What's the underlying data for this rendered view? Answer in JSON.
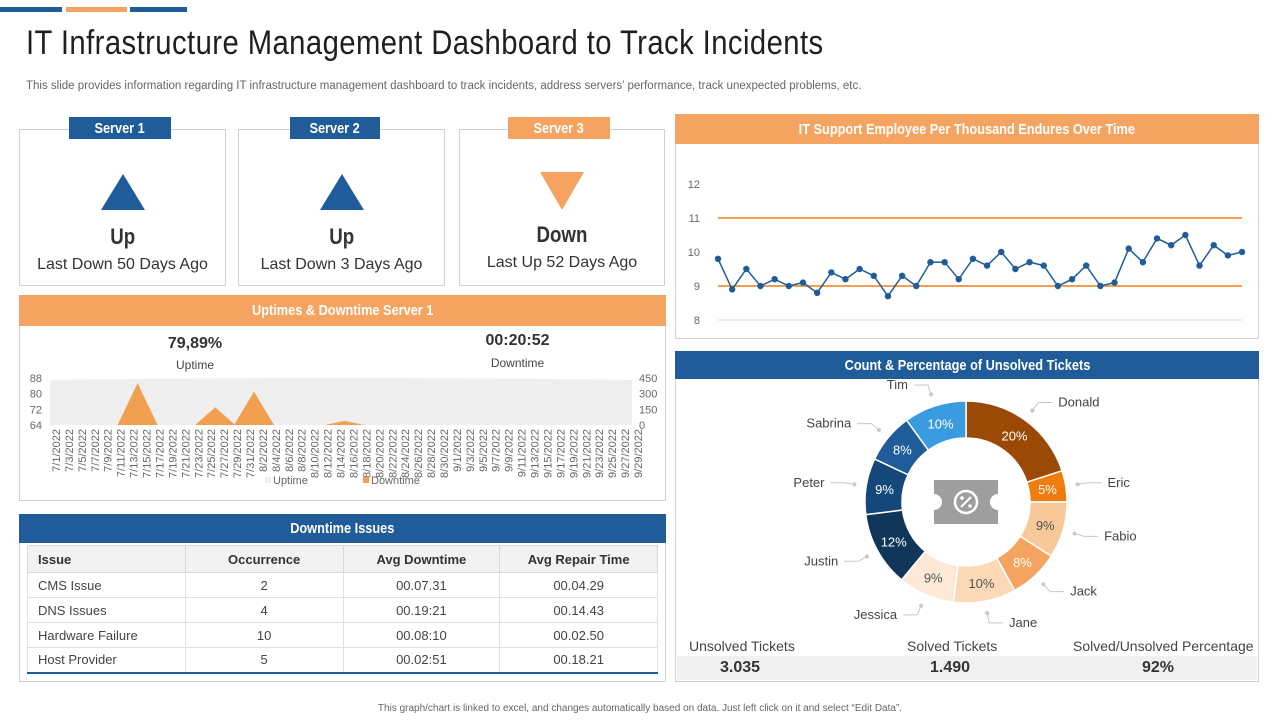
{
  "page": {
    "title": "IT Infrastructure Management Dashboard to Track Incidents",
    "subtitle": "This slide provides information regarding IT infrastructure management dashboard to track incidents, address servers’ performance, track unexpected problems, etc.",
    "footer": "This graph/chart is linked to excel, and changes automatically based on data. Just left click on it and select “Edit Data”."
  },
  "colors": {
    "blue": "#1f5c99",
    "orange": "#f4a460",
    "dark_navy": "#173a5e",
    "light_blue": "#3b8fd6"
  },
  "servers": [
    {
      "label": "Server 1",
      "status": "Up",
      "note": "Last Down 50 Days Ago",
      "direction": "up"
    },
    {
      "label": "Server 2",
      "status": "Up",
      "note": "Last Down 3 Days Ago",
      "direction": "up"
    },
    {
      "label": "Server 3",
      "status": "Down",
      "note": "Last Up 52 Days Ago",
      "direction": "down"
    }
  ],
  "uptime_panel": {
    "title": "Uptimes & Downtime Server 1",
    "uptime_value": "79,89%",
    "uptime_label": "Uptime",
    "downtime_value": "00:20:52",
    "downtime_label": "Downtime"
  },
  "issues_panel": {
    "title": "Downtime Issues",
    "headers": [
      "Issue",
      "Occurrence",
      "Avg Downtime",
      "Avg Repair Time"
    ],
    "rows": [
      [
        "CMS Issue",
        "2",
        "00.07.31",
        "00.04.29"
      ],
      [
        "DNS Issues",
        "4",
        "00.19:21",
        "00.14.43"
      ],
      [
        "Hardware Failure",
        "10",
        "00.08:10",
        "00.02.50"
      ],
      [
        "Host Provider",
        "5",
        "00.02:51",
        "00.18.21"
      ]
    ]
  },
  "line_panel": {
    "title": "IT Support Employee Per Thousand Endures Over Time"
  },
  "donut_panel": {
    "title": "Count & Percentage of Unsolved Tickets",
    "stats": [
      {
        "label": "Unsolved Tickets",
        "value": "3.035"
      },
      {
        "label": "Solved Tickets",
        "value": "1.490"
      },
      {
        "label": "Solved/Unsolved Percentage",
        "value": "92%"
      }
    ]
  },
  "chart_data": [
    {
      "type": "area",
      "legend": [
        "Uptime",
        "Downtime"
      ],
      "legend_placement": "bottom",
      "y_left_ticks": [
        "88",
        "80",
        "72",
        "64"
      ],
      "y_right_ticks": [
        "450",
        "300",
        "150",
        "0"
      ],
      "x": [
        "7/1/2022",
        "7/3/2022",
        "7/5/2022",
        "7/7/2022",
        "7/9/2022",
        "7/11/2022",
        "7/13/2022",
        "7/15/2022",
        "7/17/2022",
        "7/19/2022",
        "7/21/2022",
        "7/23/2022",
        "7/25/2022",
        "7/27/2022",
        "7/29/2022",
        "7/31/2022",
        "8/2/2022",
        "8/4/2022",
        "8/6/2022",
        "8/8/2022",
        "8/10/2022",
        "8/12/2022",
        "8/14/2022",
        "8/16/2022",
        "8/18/2022",
        "8/20/2022",
        "8/22/2022",
        "8/24/2022",
        "8/26/2022",
        "8/28/2022",
        "8/30/2022",
        "9/1/2022",
        "9/3/2022",
        "9/5/2022",
        "9/7/2022",
        "9/9/2022",
        "9/11/2022",
        "9/13/2022",
        "9/15/2022",
        "9/17/2022",
        "9/19/2022",
        "9/21/2022",
        "9/23/2022",
        "9/25/2022",
        "9/27/2022",
        "9/29/2022"
      ],
      "downtime": [
        0,
        0,
        0,
        0,
        0,
        0,
        400,
        0,
        0,
        0,
        0,
        0,
        170,
        0,
        0,
        320,
        0,
        0,
        0,
        0,
        0,
        0,
        40,
        0,
        0,
        0,
        0,
        0,
        0,
        0,
        0,
        0,
        0,
        0,
        0,
        0,
        0,
        0,
        0,
        0,
        0,
        0,
        0,
        0,
        0,
        0
      ],
      "uptime_min": 64,
      "uptime_max": 88
    },
    {
      "type": "line",
      "y_ticks": [
        "12",
        "11",
        "10",
        "9",
        "8"
      ],
      "ylim": [
        8,
        12
      ],
      "reference_lines": [
        11,
        9
      ],
      "values": [
        9.8,
        8.9,
        9.5,
        9.0,
        9.2,
        9.0,
        9.1,
        8.8,
        9.4,
        9.2,
        9.5,
        9.3,
        8.7,
        9.3,
        9.0,
        9.7,
        9.7,
        9.2,
        9.8,
        9.6,
        10.0,
        9.5,
        9.7,
        9.6,
        9.0,
        9.2,
        9.6,
        9.0,
        9.1,
        10.1,
        9.7,
        10.4,
        10.2,
        10.5,
        9.6,
        10.2,
        9.9,
        10.0
      ]
    },
    {
      "type": "pie",
      "slices": [
        {
          "name": "Donald",
          "value": 20,
          "label": "20%",
          "color": "#9b4a06"
        },
        {
          "name": "Eric",
          "value": 5,
          "label": "5%",
          "color": "#ee7d0e"
        },
        {
          "name": "Fabio",
          "value": 9,
          "label": "9%",
          "color": "#f8c89a"
        },
        {
          "name": "Jack",
          "value": 8,
          "label": "8%",
          "color": "#f4a460"
        },
        {
          "name": "Jane",
          "value": 10,
          "label": "10%",
          "color": "#fbd9b7"
        },
        {
          "name": "Jessica",
          "value": 9,
          "label": "9%",
          "color": "#fde9d5"
        },
        {
          "name": "Justin",
          "value": 12,
          "label": "12%",
          "color": "#10365a"
        },
        {
          "name": "Peter",
          "value": 9,
          "label": "9%",
          "color": "#14477a"
        },
        {
          "name": "Sabrina",
          "value": 8,
          "label": "8%",
          "color": "#1f5c99"
        },
        {
          "name": "Tim",
          "value": 10,
          "label": "10%",
          "color": "#3b9be0"
        }
      ]
    }
  ]
}
